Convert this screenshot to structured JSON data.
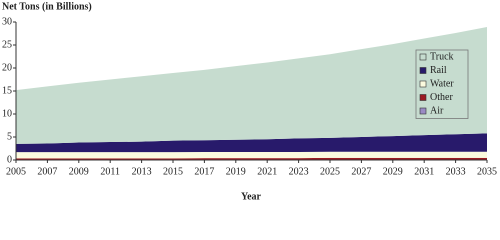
{
  "chart_data": {
    "type": "stacked-area",
    "y_label": "Net Tons (in Billions)",
    "x_label": "Year",
    "x": [
      2005,
      2007,
      2009,
      2011,
      2013,
      2015,
      2017,
      2019,
      2021,
      2023,
      2025,
      2027,
      2029,
      2031,
      2033,
      2035
    ],
    "xlim": [
      2005,
      2035
    ],
    "xticks": [
      2005,
      2007,
      2009,
      2011,
      2013,
      2015,
      2017,
      2019,
      2021,
      2023,
      2025,
      2027,
      2029,
      2031,
      2033,
      2035
    ],
    "ylim": [
      0,
      30
    ],
    "yticks": [
      0,
      5,
      10,
      15,
      20,
      25,
      30
    ],
    "legend": "right",
    "series": [
      {
        "name": "Truck",
        "color": "#c6dccf",
        "values": [
          11.7,
          12.4,
          13.0,
          13.6,
          14.2,
          14.7,
          15.3,
          16.0,
          16.7,
          17.4,
          18.2,
          19.1,
          20.0,
          21.0,
          22.0,
          23.1
        ]
      },
      {
        "name": "Rail",
        "color": "#281a6b",
        "values": [
          1.8,
          1.9,
          2.1,
          2.2,
          2.3,
          2.5,
          2.55,
          2.65,
          2.75,
          2.95,
          3.0,
          3.2,
          3.4,
          3.6,
          3.8,
          4.0
        ]
      },
      {
        "name": "Water",
        "color": "#fbfade",
        "values": [
          1.35,
          1.35,
          1.35,
          1.35,
          1.35,
          1.35,
          1.35,
          1.35,
          1.35,
          1.35,
          1.35,
          1.35,
          1.35,
          1.35,
          1.35,
          1.35
        ]
      },
      {
        "name": "Other",
        "color": "#9c1a22",
        "values": [
          0.3,
          0.3,
          0.3,
          0.3,
          0.3,
          0.3,
          0.35,
          0.35,
          0.35,
          0.35,
          0.4,
          0.4,
          0.4,
          0.4,
          0.4,
          0.4
        ]
      },
      {
        "name": "Air",
        "color": "#9a8ac4",
        "values": [
          0.05,
          0.05,
          0.05,
          0.05,
          0.05,
          0.05,
          0.05,
          0.05,
          0.05,
          0.05,
          0.05,
          0.05,
          0.05,
          0.05,
          0.05,
          0.05
        ]
      }
    ]
  }
}
